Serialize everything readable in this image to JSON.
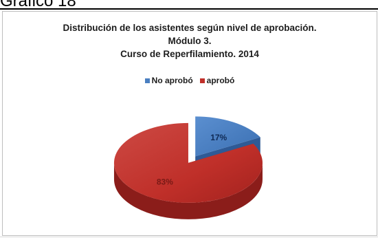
{
  "heading": "Gráfico 18",
  "chart_data": {
    "type": "pie",
    "title_lines": [
      "Distribución de los asistentes según nivel de aprobación.",
      "Módulo 3.",
      "Curso de Reperfilamiento. 2014"
    ],
    "categories": [
      "No aprobó",
      "aprobó"
    ],
    "values": [
      17,
      83
    ],
    "labels": [
      "17%",
      "83%"
    ],
    "colors": [
      "#4a7fc1",
      "#c0302a"
    ],
    "legend_position": "top",
    "style": "3d-exploded"
  }
}
